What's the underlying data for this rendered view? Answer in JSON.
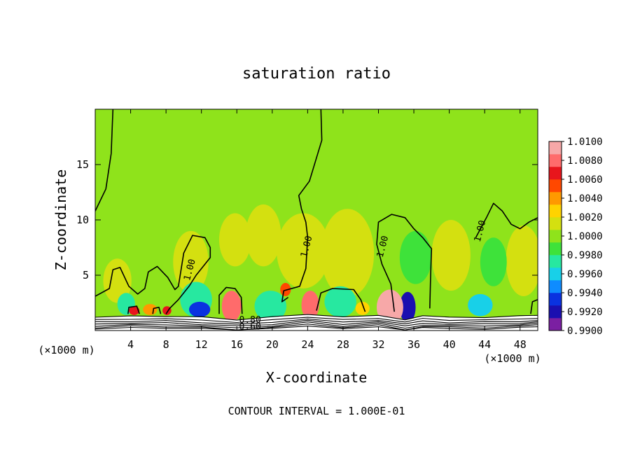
{
  "chart_data": {
    "type": "heatmap",
    "title": "saturation ratio",
    "xlabel": "X-coordinate",
    "ylabel": "Z-coordinate",
    "x_unit_left": "(×1000 m)",
    "x_unit_right": "(×1000 m)",
    "footer": "CONTOUR INTERVAL = 1.000E-01",
    "xlim": [
      0,
      50
    ],
    "ylim": [
      0,
      20
    ],
    "x_ticks": [
      4,
      8,
      12,
      16,
      20,
      24,
      28,
      32,
      36,
      40,
      44,
      48
    ],
    "x_tick_labels": [
      "4",
      "8",
      "12",
      "16",
      "20",
      "24",
      "28",
      "32",
      "36",
      "40",
      "44",
      "48"
    ],
    "y_ticks": [
      5,
      10,
      15
    ],
    "y_tick_labels": [
      "5",
      "10",
      "15"
    ],
    "colorbar": {
      "min": 0.99,
      "max": 1.01,
      "labels": [
        "1.0100",
        "1.0080",
        "1.0060",
        "1.0040",
        "1.0020",
        "1.0000",
        "0.9980",
        "0.9960",
        "0.9940",
        "0.9920",
        "0.9900"
      ],
      "colors": [
        "#7b1fa2",
        "#1a0fb0",
        "#0a32e0",
        "#0f8cff",
        "#18d0e8",
        "#27e8a0",
        "#3ee23a",
        "#8fe31b",
        "#d4e010",
        "#ffd300",
        "#ff9900",
        "#ff4800",
        "#e8151c",
        "#ff6b6b",
        "#f7a8a8"
      ]
    },
    "background_value": 1.0,
    "contour_labels": [
      {
        "text": "1.00",
        "x": 10.6,
        "z": 5.5
      },
      {
        "text": "1.00",
        "x": 23.8,
        "z": 7.6
      },
      {
        "text": "1.00",
        "x": 32.4,
        "z": 7.6
      },
      {
        "text": "1.00",
        "x": 43.4,
        "z": 9.0
      },
      {
        "text": "0.80",
        "x": 17.5,
        "z": 1.0
      },
      {
        "text": "0.60",
        "x": 17.5,
        "z": 0.4
      }
    ],
    "contours": [
      [
        [
          0.0,
          10.8
        ],
        [
          1.2,
          12.8
        ],
        [
          1.8,
          16.0
        ],
        [
          2.0,
          20.0
        ]
      ],
      [
        [
          0.0,
          3.1
        ],
        [
          1.6,
          3.8
        ],
        [
          2.0,
          5.5
        ],
        [
          2.8,
          5.7
        ],
        [
          3.8,
          4.0
        ],
        [
          4.8,
          3.3
        ],
        [
          5.6,
          3.8
        ],
        [
          6.0,
          5.3
        ],
        [
          7.0,
          5.8
        ],
        [
          8.2,
          4.8
        ],
        [
          9.0,
          3.7
        ],
        [
          9.4,
          4.0
        ],
        [
          10.0,
          7.0
        ],
        [
          11.0,
          8.6
        ],
        [
          12.4,
          8.4
        ],
        [
          13.0,
          7.5
        ],
        [
          13.0,
          6.6
        ],
        [
          11.4,
          5.0
        ],
        [
          10.6,
          4.0
        ],
        [
          9.4,
          2.8
        ],
        [
          8.4,
          2.0
        ],
        [
          8.0,
          1.5
        ]
      ],
      [
        [
          25.5,
          20.0
        ],
        [
          25.6,
          17.2
        ],
        [
          24.2,
          13.5
        ],
        [
          23.0,
          12.2
        ],
        [
          23.3,
          11.0
        ],
        [
          23.8,
          9.8
        ],
        [
          24.0,
          8.4
        ],
        [
          23.8,
          5.6
        ],
        [
          23.1,
          4.0
        ],
        [
          21.3,
          3.6
        ],
        [
          21.1,
          2.6
        ],
        [
          21.8,
          3.0
        ]
      ],
      [
        [
          25.0,
          1.8
        ],
        [
          25.5,
          3.4
        ],
        [
          26.8,
          3.8
        ],
        [
          29.2,
          3.7
        ],
        [
          30.0,
          2.8
        ],
        [
          30.5,
          1.7
        ]
      ],
      [
        [
          33.8,
          1.7
        ],
        [
          33.4,
          4.2
        ],
        [
          32.4,
          6.0
        ],
        [
          31.8,
          7.8
        ],
        [
          32.0,
          9.8
        ],
        [
          33.5,
          10.5
        ],
        [
          35.0,
          10.2
        ],
        [
          36.0,
          9.2
        ],
        [
          37.0,
          8.4
        ],
        [
          38.0,
          7.4
        ],
        [
          37.9,
          5.2
        ],
        [
          37.8,
          2.0
        ]
      ],
      [
        [
          43.0,
          8.4
        ],
        [
          44.2,
          10.2
        ],
        [
          45.0,
          11.5
        ],
        [
          46.0,
          10.8
        ],
        [
          47.0,
          9.6
        ],
        [
          48.0,
          9.2
        ],
        [
          49.0,
          9.8
        ],
        [
          50.0,
          10.2
        ]
      ],
      [
        [
          3.7,
          1.5
        ],
        [
          3.8,
          2.1
        ],
        [
          4.7,
          2.2
        ],
        [
          5.0,
          1.5
        ]
      ],
      [
        [
          6.5,
          1.5
        ],
        [
          6.6,
          2.0
        ],
        [
          7.2,
          2.1
        ],
        [
          7.4,
          1.5
        ]
      ],
      [
        [
          14.0,
          1.5
        ],
        [
          14.0,
          3.2
        ],
        [
          14.8,
          3.9
        ],
        [
          15.8,
          3.8
        ],
        [
          16.5,
          3.0
        ],
        [
          16.6,
          1.5
        ]
      ],
      [
        [
          49.2,
          1.5
        ],
        [
          49.4,
          2.6
        ],
        [
          50.0,
          2.8
        ]
      ]
    ],
    "blobs": [
      {
        "x": 23.5,
        "z": 7.2,
        "rx": 3.0,
        "rz": 3.4,
        "value": 1.0018
      },
      {
        "x": 28.5,
        "z": 7.0,
        "rx": 3.0,
        "rz": 4.0,
        "value": 1.0018
      },
      {
        "x": 19.0,
        "z": 8.6,
        "rx": 2.0,
        "rz": 2.8,
        "value": 1.0014
      },
      {
        "x": 15.8,
        "z": 8.2,
        "rx": 1.8,
        "rz": 2.4,
        "value": 1.0012
      },
      {
        "x": 10.8,
        "z": 6.2,
        "rx": 2.0,
        "rz": 2.8,
        "value": 1.0012
      },
      {
        "x": 40.2,
        "z": 6.8,
        "rx": 2.2,
        "rz": 3.2,
        "value": 1.0018
      },
      {
        "x": 48.4,
        "z": 6.3,
        "rx": 2.0,
        "rz": 3.2,
        "value": 1.0016
      },
      {
        "x": 36.2,
        "z": 6.6,
        "rx": 1.8,
        "rz": 2.4,
        "value": 0.9986
      },
      {
        "x": 45.0,
        "z": 6.2,
        "rx": 1.5,
        "rz": 2.2,
        "value": 0.9988
      },
      {
        "x": 2.5,
        "z": 4.5,
        "rx": 1.6,
        "rz": 2.0,
        "value": 1.0014
      },
      {
        "x": 11.4,
        "z": 2.8,
        "rx": 1.8,
        "rz": 1.6,
        "value": 0.9972
      },
      {
        "x": 11.8,
        "z": 1.9,
        "rx": 1.2,
        "rz": 0.7,
        "value": 0.9934
      },
      {
        "x": 19.8,
        "z": 2.2,
        "rx": 1.8,
        "rz": 1.4,
        "value": 0.9974
      },
      {
        "x": 27.7,
        "z": 2.6,
        "rx": 1.8,
        "rz": 1.4,
        "value": 0.997
      },
      {
        "x": 35.3,
        "z": 2.1,
        "rx": 0.9,
        "rz": 1.4,
        "value": 0.9918
      },
      {
        "x": 43.5,
        "z": 2.3,
        "rx": 1.4,
        "rz": 1.0,
        "value": 0.9964
      },
      {
        "x": 3.5,
        "z": 2.4,
        "rx": 1.0,
        "rz": 1.0,
        "value": 0.9968
      },
      {
        "x": 4.4,
        "z": 1.8,
        "rx": 0.6,
        "rz": 0.4,
        "value": 1.0068
      },
      {
        "x": 6.2,
        "z": 1.9,
        "rx": 0.8,
        "rz": 0.5,
        "value": 1.0046
      },
      {
        "x": 8.1,
        "z": 1.8,
        "rx": 0.5,
        "rz": 0.4,
        "value": 1.006
      },
      {
        "x": 15.4,
        "z": 2.2,
        "rx": 1.1,
        "rz": 1.4,
        "value": 1.0085
      },
      {
        "x": 24.3,
        "z": 2.3,
        "rx": 1.0,
        "rz": 1.3,
        "value": 1.0078
      },
      {
        "x": 33.3,
        "z": 2.1,
        "rx": 1.5,
        "rz": 1.6,
        "value": 1.009
      },
      {
        "x": 30.2,
        "z": 2.0,
        "rx": 0.8,
        "rz": 0.6,
        "value": 1.0032
      },
      {
        "x": 21.5,
        "z": 3.7,
        "rx": 0.6,
        "rz": 0.6,
        "value": 1.005
      }
    ],
    "terrain": [
      [
        0,
        1.2
      ],
      [
        4,
        1.3
      ],
      [
        8,
        1.3
      ],
      [
        12,
        1.2
      ],
      [
        16,
        1.0
      ],
      [
        20,
        1.2
      ],
      [
        24,
        1.5
      ],
      [
        28,
        1.2
      ],
      [
        32,
        1.4
      ],
      [
        35,
        1.0
      ],
      [
        37,
        1.3
      ],
      [
        40,
        1.2
      ],
      [
        44,
        1.2
      ],
      [
        48,
        1.3
      ],
      [
        50,
        1.4
      ]
    ],
    "colorbar_orientation": "vertical-right",
    "grid": false,
    "legend": "none"
  }
}
